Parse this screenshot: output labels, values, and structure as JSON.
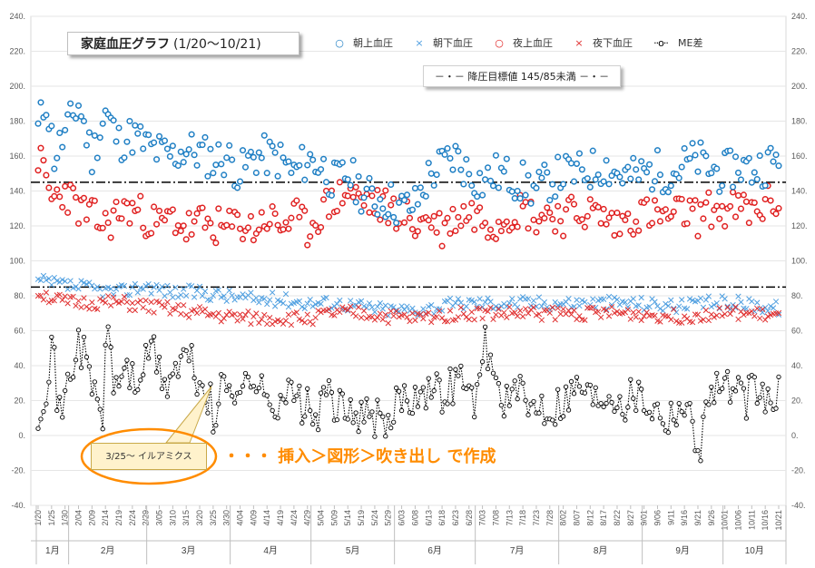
{
  "chart_data": {
    "type": "scatter",
    "title": "家庭血圧グラフ",
    "title_period": "(1/20～10/21)",
    "ylim": [
      -40,
      240
    ],
    "y_ticks": [
      "240.",
      "220.",
      "200.",
      "180.",
      "160.",
      "140.",
      "120.",
      "100.",
      "80.",
      "60.",
      "40.",
      "20.",
      "0.",
      "-20.",
      "-40."
    ],
    "x_date_labels": [
      "1/20",
      "1/25",
      "1/30",
      "2/04",
      "2/09",
      "2/14",
      "2/19",
      "2/24",
      "2/29",
      "3/05",
      "3/10",
      "3/15",
      "3/20",
      "3/25",
      "3/30",
      "4/04",
      "4/09",
      "4/14",
      "4/19",
      "4/24",
      "4/29",
      "5/04",
      "5/09",
      "5/14",
      "5/19",
      "5/24",
      "5/29",
      "6/03",
      "6/08",
      "6/13",
      "6/18",
      "6/23",
      "6/28",
      "7/03",
      "7/08",
      "7/13",
      "7/18",
      "7/23",
      "7/28",
      "8/02",
      "8/07",
      "8/12",
      "8/17",
      "8/22",
      "8/27",
      "9/01",
      "9/06",
      "9/11",
      "9/16",
      "9/21",
      "9/26",
      "10/01",
      "10/06",
      "10/11",
      "10/16",
      "10/21"
    ],
    "months": [
      {
        "label": "1月",
        "start": 0,
        "end": 12
      },
      {
        "label": "2月",
        "start": 12,
        "end": 41
      },
      {
        "label": "3月",
        "start": 41,
        "end": 72
      },
      {
        "label": "4月",
        "start": 72,
        "end": 102
      },
      {
        "label": "5月",
        "start": 102,
        "end": 133
      },
      {
        "label": "6月",
        "start": 133,
        "end": 163
      },
      {
        "label": "7月",
        "start": 163,
        "end": 194
      },
      {
        "label": "8月",
        "start": 194,
        "end": 225
      },
      {
        "label": "9月",
        "start": 225,
        "end": 255
      },
      {
        "label": "10月",
        "start": 255,
        "end": 276
      }
    ],
    "n_days": 276,
    "target_lines": [
      145,
      85
    ],
    "legend": [
      {
        "name": "朝上血圧",
        "marker": "circle",
        "color": "#1f7fc4"
      },
      {
        "name": "朝下血圧",
        "marker": "x",
        "color": "#4f9fe0"
      },
      {
        "name": "夜上血圧",
        "marker": "circle",
        "color": "#e02020"
      },
      {
        "name": "夜下血圧",
        "marker": "x",
        "color": "#e03030"
      },
      {
        "name": "ME差",
        "marker": "dotted-line-circle",
        "color": "#000000"
      }
    ],
    "target_label": "－・－ 降圧目標値 145/85未満 －・－",
    "series_anchors": {
      "morning_sys": [
        [
          0,
          175
        ],
        [
          3,
          193
        ],
        [
          6,
          160
        ],
        [
          10,
          172
        ],
        [
          15,
          190
        ],
        [
          20,
          160
        ],
        [
          25,
          185
        ],
        [
          30,
          168
        ],
        [
          35,
          172
        ],
        [
          40,
          166
        ],
        [
          45,
          162
        ],
        [
          50,
          160
        ],
        [
          55,
          164
        ],
        [
          60,
          162
        ],
        [
          65,
          158
        ],
        [
          70,
          160
        ],
        [
          75,
          150
        ],
        [
          80,
          160
        ],
        [
          85,
          160
        ],
        [
          90,
          158
        ],
        [
          95,
          150
        ],
        [
          100,
          158
        ],
        [
          105,
          155
        ],
        [
          110,
          145
        ],
        [
          115,
          150
        ],
        [
          120,
          140
        ],
        [
          125,
          135
        ],
        [
          130,
          135
        ],
        [
          135,
          130
        ],
        [
          140,
          132
        ],
        [
          145,
          148
        ],
        [
          150,
          155
        ],
        [
          155,
          160
        ],
        [
          160,
          150
        ],
        [
          165,
          145
        ],
        [
          170,
          150
        ],
        [
          175,
          148
        ],
        [
          180,
          145
        ],
        [
          185,
          140
        ],
        [
          190,
          146
        ],
        [
          195,
          150
        ],
        [
          200,
          150
        ],
        [
          205,
          152
        ],
        [
          210,
          155
        ],
        [
          215,
          150
        ],
        [
          220,
          148
        ],
        [
          225,
          150
        ],
        [
          230,
          152
        ],
        [
          235,
          150
        ],
        [
          240,
          155
        ],
        [
          245,
          158
        ],
        [
          250,
          152
        ],
        [
          255,
          150
        ],
        [
          260,
          155
        ],
        [
          265,
          152
        ],
        [
          270,
          155
        ],
        [
          275,
          158
        ]
      ],
      "night_sys": [
        [
          0,
          160
        ],
        [
          5,
          135
        ],
        [
          10,
          140
        ],
        [
          15,
          130
        ],
        [
          20,
          125
        ],
        [
          25,
          120
        ],
        [
          30,
          128
        ],
        [
          35,
          130
        ],
        [
          40,
          125
        ],
        [
          45,
          120
        ],
        [
          50,
          125
        ],
        [
          55,
          118
        ],
        [
          60,
          122
        ],
        [
          65,
          120
        ],
        [
          70,
          118
        ],
        [
          75,
          122
        ],
        [
          80,
          118
        ],
        [
          85,
          125
        ],
        [
          90,
          120
        ],
        [
          95,
          125
        ],
        [
          100,
          118
        ],
        [
          105,
          128
        ],
        [
          110,
          135
        ],
        [
          115,
          140
        ],
        [
          120,
          135
        ],
        [
          125,
          132
        ],
        [
          130,
          130
        ],
        [
          135,
          128
        ],
        [
          140,
          120
        ],
        [
          145,
          125
        ],
        [
          150,
          118
        ],
        [
          155,
          125
        ],
        [
          160,
          128
        ],
        [
          165,
          125
        ],
        [
          170,
          122
        ],
        [
          175,
          128
        ],
        [
          180,
          130
        ],
        [
          185,
          125
        ],
        [
          190,
          128
        ],
        [
          195,
          125
        ],
        [
          200,
          128
        ],
        [
          205,
          128
        ],
        [
          210,
          125
        ],
        [
          215,
          120
        ],
        [
          220,
          125
        ],
        [
          225,
          128
        ],
        [
          230,
          125
        ],
        [
          235,
          125
        ],
        [
          240,
          128
        ],
        [
          245,
          125
        ],
        [
          250,
          130
        ],
        [
          255,
          128
        ],
        [
          260,
          130
        ],
        [
          265,
          128
        ],
        [
          270,
          132
        ],
        [
          275,
          135
        ]
      ],
      "morning_dia": [
        [
          0,
          88
        ],
        [
          10,
          86
        ],
        [
          20,
          84
        ],
        [
          30,
          82
        ],
        [
          40,
          86
        ],
        [
          50,
          82
        ],
        [
          60,
          82
        ],
        [
          70,
          80
        ],
        [
          80,
          78
        ],
        [
          90,
          78
        ],
        [
          100,
          76
        ],
        [
          110,
          76
        ],
        [
          120,
          74
        ],
        [
          130,
          72
        ],
        [
          140,
          72
        ],
        [
          150,
          74
        ],
        [
          160,
          76
        ],
        [
          170,
          76
        ],
        [
          180,
          76
        ],
        [
          190,
          76
        ],
        [
          200,
          76
        ],
        [
          210,
          76
        ],
        [
          220,
          76
        ],
        [
          230,
          75
        ],
        [
          240,
          74
        ],
        [
          250,
          76
        ],
        [
          260,
          76
        ],
        [
          270,
          74
        ],
        [
          275,
          73
        ]
      ],
      "night_dia": [
        [
          0,
          82
        ],
        [
          10,
          76
        ],
        [
          20,
          76
        ],
        [
          30,
          76
        ],
        [
          40,
          74
        ],
        [
          50,
          72
        ],
        [
          60,
          70
        ],
        [
          70,
          68
        ],
        [
          80,
          67
        ],
        [
          90,
          67
        ],
        [
          100,
          67
        ],
        [
          110,
          70
        ],
        [
          120,
          70
        ],
        [
          130,
          68
        ],
        [
          140,
          67
        ],
        [
          150,
          69
        ],
        [
          160,
          70
        ],
        [
          170,
          70
        ],
        [
          180,
          70
        ],
        [
          190,
          70
        ],
        [
          200,
          70
        ],
        [
          210,
          70
        ],
        [
          220,
          70
        ],
        [
          230,
          69
        ],
        [
          240,
          68
        ],
        [
          250,
          70
        ],
        [
          260,
          70
        ],
        [
          270,
          69
        ],
        [
          275,
          68
        ]
      ],
      "me_diff": [
        [
          0,
          15
        ],
        [
          3,
          30
        ],
        [
          5,
          55
        ],
        [
          8,
          10
        ],
        [
          12,
          35
        ],
        [
          15,
          55
        ],
        [
          18,
          40
        ],
        [
          20,
          30
        ],
        [
          24,
          10
        ],
        [
          26,
          70
        ],
        [
          28,
          25
        ],
        [
          32,
          40
        ],
        [
          36,
          30
        ],
        [
          40,
          40
        ],
        [
          42,
          55
        ],
        [
          45,
          35
        ],
        [
          48,
          30
        ],
        [
          52,
          40
        ],
        [
          56,
          45
        ],
        [
          60,
          28
        ],
        [
          64,
          20
        ],
        [
          66,
          -5
        ],
        [
          68,
          35
        ],
        [
          72,
          30
        ],
        [
          76,
          25
        ],
        [
          80,
          35
        ],
        [
          84,
          20
        ],
        [
          88,
          20
        ],
        [
          92,
          25
        ],
        [
          96,
          20
        ],
        [
          100,
          15
        ],
        [
          104,
          10
        ],
        [
          108,
          25
        ],
        [
          110,
          20
        ],
        [
          114,
          10
        ],
        [
          118,
          15
        ],
        [
          122,
          10
        ],
        [
          126,
          10
        ],
        [
          130,
          0
        ],
        [
          134,
          25
        ],
        [
          138,
          20
        ],
        [
          142,
          30
        ],
        [
          146,
          25
        ],
        [
          150,
          25
        ],
        [
          154,
          30
        ],
        [
          158,
          35
        ],
        [
          160,
          20
        ],
        [
          164,
          25
        ],
        [
          166,
          55
        ],
        [
          170,
          30
        ],
        [
          174,
          20
        ],
        [
          178,
          25
        ],
        [
          182,
          15
        ],
        [
          186,
          20
        ],
        [
          190,
          15
        ],
        [
          194,
          20
        ],
        [
          198,
          25
        ],
        [
          202,
          30
        ],
        [
          206,
          20
        ],
        [
          210,
          25
        ],
        [
          214,
          25
        ],
        [
          218,
          20
        ],
        [
          222,
          25
        ],
        [
          226,
          20
        ],
        [
          230,
          15
        ],
        [
          234,
          10
        ],
        [
          238,
          20
        ],
        [
          242,
          10
        ],
        [
          246,
          -5
        ],
        [
          250,
          30
        ],
        [
          254,
          30
        ],
        [
          258,
          25
        ],
        [
          262,
          20
        ],
        [
          266,
          25
        ],
        [
          270,
          20
        ],
        [
          275,
          22
        ]
      ]
    }
  },
  "annotations": {
    "callout_text": "3/25～ イルアミクス",
    "note_text": "・・・ 挿入＞図形＞吹き出し で作成"
  },
  "colors": {
    "morning_sys": "#1f7fc4",
    "morning_dia": "#4f9fe0",
    "night_sys": "#e02020",
    "night_dia": "#e03030",
    "me_diff": "#000000",
    "accent": "#ff8c00"
  }
}
